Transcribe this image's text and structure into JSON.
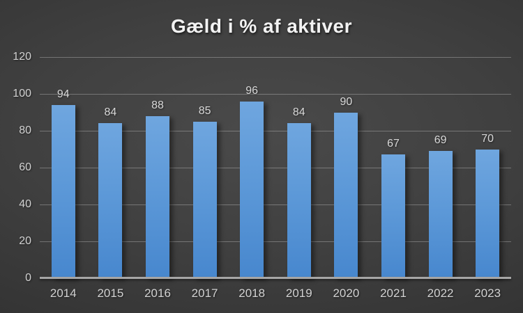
{
  "chart_data": {
    "type": "bar",
    "title": "Gæld i % af aktiver",
    "categories": [
      "2014",
      "2015",
      "2016",
      "2017",
      "2018",
      "2019",
      "2020",
      "2021",
      "2022",
      "2023"
    ],
    "values": [
      94,
      84,
      88,
      85,
      96,
      84,
      90,
      67,
      69,
      70
    ],
    "xlabel": "",
    "ylabel": "",
    "ylim": [
      0,
      120
    ],
    "yticks": [
      0,
      20,
      40,
      60,
      80,
      100,
      120
    ],
    "grid": "horizontal",
    "legend": "none",
    "data_labels": true
  },
  "colors": {
    "background_center": "#4a4a4a",
    "background_edge": "#222222",
    "bar_top": "#6fa6df",
    "bar_bottom": "#4787ce",
    "gridline": "rgba(255,255,255,0.28)",
    "axis_line": "#a6a6a6",
    "tick_label": "#d2d2d2",
    "data_label": "#d9d9d9",
    "title": "#f2f2f2"
  }
}
